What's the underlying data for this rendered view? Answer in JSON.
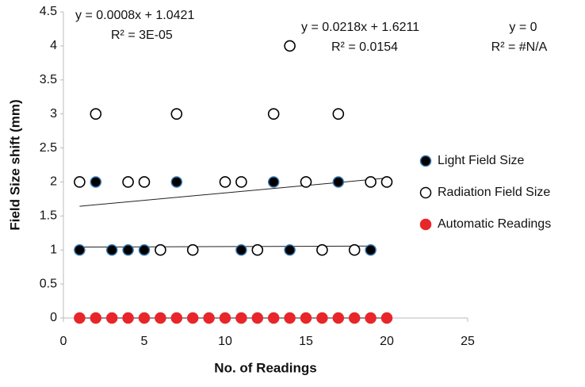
{
  "chart_data": {
    "type": "scatter",
    "x_label": "No. of Readings",
    "y_label": "Field Size shift (mm)",
    "xlim": [
      0,
      25
    ],
    "xticks": [
      0,
      5,
      10,
      15,
      20,
      25
    ],
    "ylim": [
      0,
      4.5
    ],
    "yticks": [
      0,
      0.5,
      1,
      1.5,
      2,
      2.5,
      3,
      3.5,
      4,
      4.5
    ],
    "grid": false,
    "legend": "right",
    "series": [
      {
        "name": "Light Field Size",
        "color": "#000000",
        "edge": "#3a78b0",
        "filled": true,
        "x": [
          1,
          2,
          3,
          4,
          5,
          7,
          11,
          13,
          14,
          17,
          19
        ],
        "values": [
          1,
          2,
          1,
          1,
          1,
          2,
          1,
          2,
          1,
          2,
          1
        ],
        "trendline": {
          "slope": 0.0008,
          "intercept": 1.0421,
          "equation": "y = 0.0008x + 1.0421",
          "r2": "R² = 3E-05"
        }
      },
      {
        "name": "Radiation Field Size",
        "color": "#ffffff",
        "edge": "#000000",
        "filled": false,
        "x": [
          1,
          2,
          4,
          5,
          6,
          7,
          8,
          10,
          11,
          12,
          13,
          14,
          15,
          16,
          17,
          18,
          19,
          20
        ],
        "values": [
          2,
          3,
          2,
          2,
          1,
          3,
          1,
          2,
          2,
          1,
          3,
          4,
          2,
          1,
          3,
          1,
          2,
          2
        ],
        "trendline": {
          "slope": 0.0218,
          "intercept": 1.6211,
          "equation": "y = 0.0218x + 1.6211",
          "r2": "R² = 0.0154"
        }
      },
      {
        "name": "Automatic Readings",
        "color": "#e8262a",
        "edge": "#e8262a",
        "filled": true,
        "x": [
          1,
          2,
          3,
          4,
          5,
          6,
          7,
          8,
          9,
          10,
          11,
          12,
          13,
          14,
          15,
          16,
          17,
          18,
          19,
          20
        ],
        "values": [
          0,
          0,
          0,
          0,
          0,
          0,
          0,
          0,
          0,
          0,
          0,
          0,
          0,
          0,
          0,
          0,
          0,
          0,
          0,
          0
        ],
        "trendline": {
          "slope": 0,
          "intercept": 0,
          "equation": "y = 0",
          "r2": "R² = #N/A"
        }
      }
    ]
  }
}
